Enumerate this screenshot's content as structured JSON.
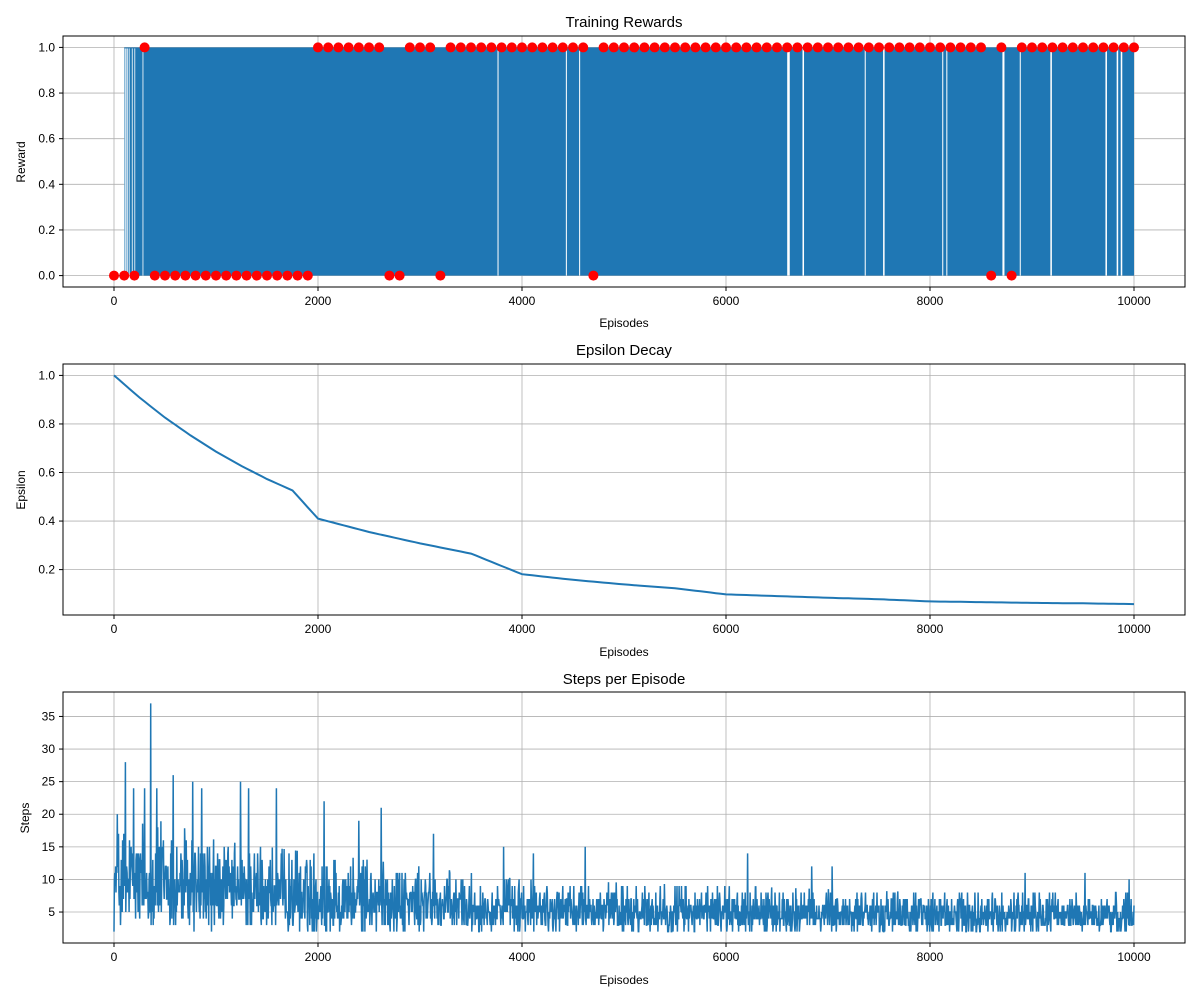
{
  "figure": {
    "background": "#ffffff"
  },
  "chart_data": [
    {
      "type": "line",
      "title": "Training Rewards",
      "xlabel": "Episodes",
      "ylabel": "Reward",
      "xlim": [
        -500,
        10500
      ],
      "ylim": [
        -0.05,
        1.05
      ],
      "xticks": [
        0,
        2000,
        4000,
        6000,
        8000,
        10000
      ],
      "yticks": [
        0.0,
        0.2,
        0.4,
        0.6,
        0.8,
        1.0
      ],
      "xtick_labels": [
        "0",
        "2000",
        "4000",
        "6000",
        "8000",
        "10000"
      ],
      "ytick_labels": [
        "0.0",
        "0.2",
        "0.4",
        "0.6",
        "0.8",
        "1.0"
      ],
      "grid": true,
      "line_color": "#1f77b4",
      "marker_color": "#ff0000",
      "series": [
        {
          "kind": "binary-line",
          "x_range": [
            0,
            10000
          ],
          "values": [
            0,
            1
          ],
          "note_visible": "rapidly alternating 0/1 rewards; sparse near start, dense later",
          "zero_gaps_after_first_one": [
            [
              105,
              110
            ],
            [
              115,
              120
            ],
            [
              130,
              135
            ],
            [
              145,
              150
            ],
            [
              175,
              180
            ],
            [
              200,
              205
            ],
            [
              280,
              285
            ],
            [
              3760,
              3770
            ],
            [
              4430,
              4440
            ],
            [
              4560,
              4570
            ],
            [
              6600,
              6625
            ],
            [
              6750,
              6765
            ],
            [
              7360,
              7370
            ],
            [
              7540,
              7555
            ],
            [
              8120,
              8130
            ],
            [
              8160,
              8170
            ],
            [
              8710,
              8730
            ],
            [
              8880,
              8890
            ],
            [
              9180,
              9195
            ],
            [
              9720,
              9735
            ],
            [
              9830,
              9845
            ],
            [
              9870,
              9885
            ]
          ],
          "first_one_at": 100
        },
        {
          "kind": "markers",
          "x": [
            0,
            100,
            200,
            300,
            400,
            500,
            600,
            700,
            800,
            900,
            1000,
            1100,
            1200,
            1300,
            1400,
            1500,
            1600,
            1700,
            1800,
            1900,
            2000,
            2100,
            2200,
            2300,
            2400,
            2500,
            2600,
            2700,
            2800,
            2900,
            3000,
            3100,
            3200,
            3300,
            3400,
            3500,
            3600,
            3700,
            3800,
            3900,
            4000,
            4100,
            4200,
            4300,
            4400,
            4500,
            4600,
            4700,
            4800,
            4900,
            5000,
            5100,
            5200,
            5300,
            5400,
            5500,
            5600,
            5700,
            5800,
            5900,
            6000,
            6100,
            6200,
            6300,
            6400,
            6500,
            6600,
            6700,
            6800,
            6900,
            7000,
            7100,
            7200,
            7300,
            7400,
            7500,
            7600,
            7700,
            7800,
            7900,
            8000,
            8100,
            8200,
            8300,
            8400,
            8500,
            8600,
            8700,
            8800,
            8900,
            9000,
            9100,
            9200,
            9300,
            9400,
            9500,
            9600,
            9700,
            9800,
            9900,
            10000
          ],
          "y": [
            0,
            0,
            0,
            1,
            0,
            0,
            0,
            0,
            0,
            0,
            0,
            0,
            0,
            0,
            0,
            0,
            0,
            0,
            0,
            0,
            1,
            1,
            1,
            1,
            1,
            1,
            1,
            0,
            0,
            1,
            1,
            1,
            0,
            1,
            1,
            1,
            1,
            1,
            1,
            1,
            1,
            1,
            1,
            1,
            1,
            1,
            1,
            0,
            1,
            1,
            1,
            1,
            1,
            1,
            1,
            1,
            1,
            1,
            1,
            1,
            1,
            1,
            1,
            1,
            1,
            1,
            1,
            1,
            1,
            1,
            1,
            1,
            1,
            1,
            1,
            1,
            1,
            1,
            1,
            1,
            1,
            1,
            1,
            1,
            1,
            1,
            0,
            1,
            0,
            1,
            1,
            1,
            1,
            1,
            1,
            1,
            1,
            1,
            1,
            1,
            1
          ]
        }
      ]
    },
    {
      "type": "line",
      "title": "Epsilon Decay",
      "xlabel": "Episodes",
      "ylabel": "Epsilon",
      "xlim": [
        -500,
        10500
      ],
      "ylim": [
        0.013,
        1.047
      ],
      "xticks": [
        0,
        2000,
        4000,
        6000,
        8000,
        10000
      ],
      "yticks": [
        0.2,
        0.4,
        0.6,
        0.8,
        1.0
      ],
      "xtick_labels": [
        "0",
        "2000",
        "4000",
        "6000",
        "8000",
        "10000"
      ],
      "ytick_labels": [
        "0.2",
        "0.4",
        "0.6",
        "0.8",
        "1.0"
      ],
      "grid": true,
      "line_color": "#1f77b4",
      "series": [
        {
          "kind": "line",
          "x": [
            0,
            250,
            500,
            750,
            1000,
            1250,
            1500,
            1750,
            2000,
            2500,
            3000,
            3500,
            4000,
            4500,
            5000,
            5500,
            6000,
            6500,
            7000,
            7500,
            8000,
            8500,
            9000,
            9500,
            10000
          ],
          "y": [
            1.0,
            0.909,
            0.826,
            0.753,
            0.686,
            0.627,
            0.573,
            0.526,
            0.41,
            0.355,
            0.308,
            0.266,
            0.181,
            0.158,
            0.139,
            0.123,
            0.098,
            0.091,
            0.084,
            0.078,
            0.069,
            0.066,
            0.063,
            0.061,
            0.058
          ]
        }
      ]
    },
    {
      "type": "line",
      "title": "Steps per Episode",
      "xlabel": "Episodes",
      "ylabel": "Steps",
      "xlim": [
        -500,
        10500
      ],
      "ylim": [
        0.25,
        38.75
      ],
      "xticks": [
        0,
        2000,
        4000,
        6000,
        8000,
        10000
      ],
      "yticks": [
        5,
        10,
        15,
        20,
        25,
        30,
        35
      ],
      "xtick_labels": [
        "0",
        "2000",
        "4000",
        "6000",
        "8000",
        "10000"
      ],
      "ytick_labels": [
        "5",
        "10",
        "15",
        "20",
        "25",
        "30",
        "35"
      ],
      "grid": true,
      "line_color": "#1f77b4",
      "series": [
        {
          "kind": "noisy-line",
          "x_range": [
            0,
            10000
          ],
          "min_value": 2,
          "envelope_x": [
            0,
            500,
            1000,
            2000,
            4000,
            6000,
            8000,
            10000
          ],
          "envelope_max": [
            18,
            19,
            16,
            14,
            10,
            9,
            8,
            8
          ],
          "peaks": [
            {
              "x": 30,
              "y": 20
            },
            {
              "x": 110,
              "y": 28
            },
            {
              "x": 190,
              "y": 24
            },
            {
              "x": 300,
              "y": 24
            },
            {
              "x": 360,
              "y": 37
            },
            {
              "x": 420,
              "y": 24
            },
            {
              "x": 580,
              "y": 26
            },
            {
              "x": 770,
              "y": 25
            },
            {
              "x": 860,
              "y": 24
            },
            {
              "x": 1240,
              "y": 25
            },
            {
              "x": 1320,
              "y": 24
            },
            {
              "x": 1590,
              "y": 24
            },
            {
              "x": 2060,
              "y": 22
            },
            {
              "x": 2400,
              "y": 19
            },
            {
              "x": 2620,
              "y": 21
            },
            {
              "x": 3130,
              "y": 17
            },
            {
              "x": 3820,
              "y": 15
            },
            {
              "x": 4110,
              "y": 14
            },
            {
              "x": 4620,
              "y": 15
            },
            {
              "x": 6210,
              "y": 14
            },
            {
              "x": 6840,
              "y": 12
            },
            {
              "x": 7040,
              "y": 12
            },
            {
              "x": 8930,
              "y": 11
            },
            {
              "x": 9520,
              "y": 11
            },
            {
              "x": 9950,
              "y": 10
            }
          ]
        }
      ]
    }
  ]
}
